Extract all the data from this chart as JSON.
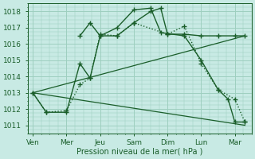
{
  "xlabel": "Pression niveau de la mer( hPa )",
  "xlabels": [
    "Ven",
    "Mer",
    "Jeu",
    "Sam",
    "Dim",
    "Lun",
    "Mar"
  ],
  "ylim": [
    1010.5,
    1018.5
  ],
  "yticks": [
    1011,
    1012,
    1013,
    1014,
    1015,
    1016,
    1017,
    1018
  ],
  "bg_color": "#c8eae4",
  "grid_color": "#9ecfbf",
  "line_color": "#1a5e2a",
  "series": [
    {
      "x": [
        0,
        0.4,
        1.0,
        1.4,
        1.7,
        2.0,
        2.5,
        3.0,
        3.5,
        3.8,
        4.0,
        4.5,
        5.0,
        5.5,
        6.0,
        6.3
      ],
      "y": [
        1013.0,
        1011.8,
        1011.8,
        1014.8,
        1013.9,
        1016.5,
        1016.5,
        1017.3,
        1018.0,
        1018.2,
        1016.6,
        1016.6,
        1016.5,
        1016.5,
        1016.5,
        1016.5
      ],
      "marker": "+",
      "markersize": 4,
      "linewidth": 1.0,
      "linestyle": "-"
    },
    {
      "x": [
        1.4,
        1.7,
        2.0,
        2.5,
        3.0,
        3.5,
        3.8,
        4.5,
        5.0,
        5.5,
        5.8,
        6.0,
        6.3
      ],
      "y": [
        1016.5,
        1017.3,
        1016.5,
        1017.0,
        1018.1,
        1018.2,
        1016.7,
        1016.5,
        1015.0,
        1013.2,
        1012.6,
        1011.2,
        1011.2
      ],
      "marker": "+",
      "markersize": 4,
      "linewidth": 1.0,
      "linestyle": "-"
    },
    {
      "x": [
        0,
        0.4,
        1.0,
        1.4,
        1.7,
        2.0,
        2.5,
        3.0,
        4.0,
        4.5,
        5.0,
        5.5,
        6.0,
        6.3
      ],
      "y": [
        1013.0,
        1011.8,
        1011.9,
        1013.5,
        1013.9,
        1016.6,
        1016.5,
        1017.3,
        1016.6,
        1017.1,
        1014.8,
        1013.2,
        1012.6,
        1011.2
      ],
      "marker": "+",
      "markersize": 4,
      "linewidth": 1.0,
      "linestyle": ":"
    },
    {
      "x": [
        0,
        6.3
      ],
      "y": [
        1013.0,
        1016.5
      ],
      "marker": null,
      "markersize": 0,
      "linewidth": 0.9,
      "linestyle": "-"
    },
    {
      "x": [
        0,
        6.3
      ],
      "y": [
        1013.0,
        1011.0
      ],
      "marker": null,
      "markersize": 0,
      "linewidth": 0.9,
      "linestyle": "-"
    }
  ],
  "xtick_positions": [
    0,
    1,
    2,
    3,
    4,
    5,
    6
  ],
  "figsize": [
    3.2,
    2.0
  ],
  "dpi": 100
}
